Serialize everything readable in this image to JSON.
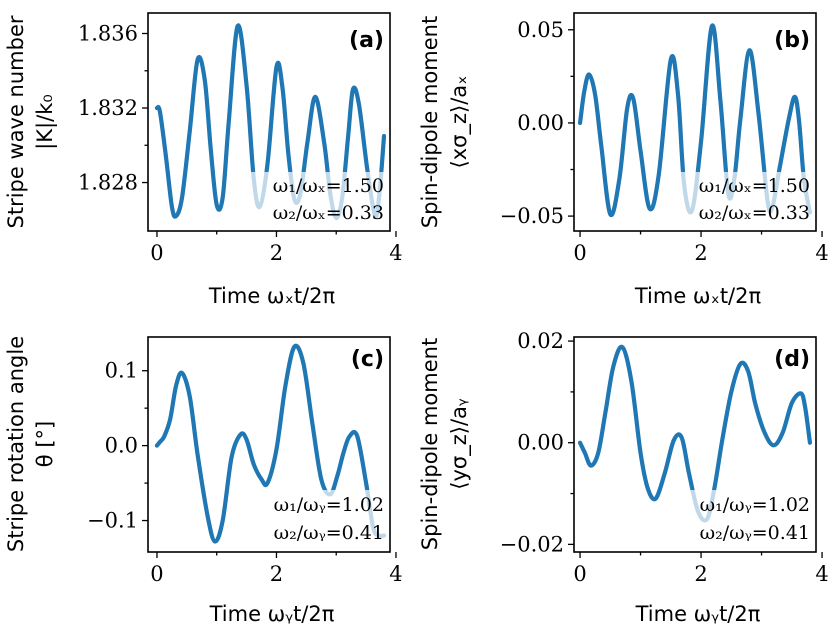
{
  "colors": {
    "line": "#1f77b4",
    "axis": "#000000"
  },
  "chart_data": [
    {
      "id": "a",
      "type": "line",
      "tag": "(a)",
      "ylabel_lines": [
        "Stripe wave number",
        "|K|/k₀"
      ],
      "xlabel": "Time ωₓt/2π",
      "xlim": [
        -0.15,
        3.9
      ],
      "ylim": [
        1.8254,
        1.8371
      ],
      "xticks": [
        0,
        2,
        4
      ],
      "xtick_labels": [
        "0",
        "2",
        "4"
      ],
      "yticks": [
        1.828,
        1.832,
        1.836
      ],
      "ytick_labels": [
        "1.828",
        "1.832",
        "1.836"
      ],
      "annotation": [
        "ω₁/ωₓ=1.50",
        "ω₂/ωₓ=0.33"
      ],
      "series": [
        {
          "name": "|K|/k0",
          "x": [
            0.0,
            0.05,
            0.15,
            0.25,
            0.32,
            0.42,
            0.55,
            0.68,
            0.8,
            0.9,
            1.0,
            1.1,
            1.2,
            1.35,
            1.5,
            1.62,
            1.72,
            1.85,
            2.0,
            2.1,
            2.2,
            2.3,
            2.4,
            2.52,
            2.65,
            2.8,
            2.9,
            3.0,
            3.1,
            3.2,
            3.28,
            3.38,
            3.52,
            3.65,
            3.72,
            3.8
          ],
          "y": [
            1.832,
            1.8318,
            1.8294,
            1.8267,
            1.8262,
            1.8272,
            1.8308,
            1.8346,
            1.8335,
            1.8298,
            1.8268,
            1.8272,
            1.8312,
            1.8364,
            1.8332,
            1.8282,
            1.8267,
            1.829,
            1.8342,
            1.8331,
            1.8295,
            1.8271,
            1.8274,
            1.8302,
            1.8326,
            1.8301,
            1.8274,
            1.8261,
            1.8272,
            1.8305,
            1.833,
            1.8322,
            1.8287,
            1.8262,
            1.8273,
            1.8305
          ]
        }
      ]
    },
    {
      "id": "b",
      "type": "line",
      "tag": "(b)",
      "ylabel_lines": [
        "Spin-dipole moment",
        "⟨xσ_z⟩/aₓ"
      ],
      "xlabel": "Time ωₓt/2π",
      "xlim": [
        -0.1,
        3.9
      ],
      "ylim": [
        -0.058,
        0.059
      ],
      "xticks": [
        0,
        2,
        4
      ],
      "xtick_labels": [
        "0",
        "2",
        "4"
      ],
      "yticks": [
        -0.05,
        0.0,
        0.05
      ],
      "ytick_labels": [
        "−0.05",
        "0.00",
        "0.05"
      ],
      "annotation": [
        "ω₁/ωₓ=1.50",
        "ω₂/ωₓ=0.33"
      ],
      "series": [
        {
          "name": "<x sigma_z>/a_x",
          "x": [
            0.0,
            0.07,
            0.15,
            0.25,
            0.35,
            0.5,
            0.65,
            0.78,
            0.88,
            1.0,
            1.15,
            1.3,
            1.5,
            1.62,
            1.72,
            1.85,
            2.0,
            2.18,
            2.32,
            2.45,
            2.55,
            2.65,
            2.8,
            2.95,
            3.1,
            3.18,
            3.3,
            3.45,
            3.55,
            3.62,
            3.7,
            3.8
          ],
          "y": [
            0.0,
            0.017,
            0.026,
            0.015,
            -0.012,
            -0.049,
            -0.03,
            0.008,
            0.013,
            -0.015,
            -0.046,
            -0.028,
            0.034,
            0.015,
            -0.033,
            -0.047,
            -0.01,
            0.052,
            0.012,
            -0.038,
            -0.03,
            0.002,
            0.039,
            0.005,
            -0.042,
            -0.045,
            -0.024,
            0.002,
            0.014,
            0.001,
            -0.03,
            -0.048
          ]
        }
      ]
    },
    {
      "id": "c",
      "type": "line",
      "tag": "(c)",
      "ylabel_lines": [
        "Stripe rotation angle",
        "θ [°]"
      ],
      "xlabel": "Time ωᵧt/2π",
      "xlim": [
        -0.15,
        3.9
      ],
      "ylim": [
        -0.142,
        0.145
      ],
      "xticks": [
        0,
        2,
        4
      ],
      "xtick_labels": [
        "0",
        "2",
        "4"
      ],
      "yticks": [
        -0.1,
        0.0,
        0.1
      ],
      "ytick_labels": [
        "−0.1",
        "0.0",
        "0.1"
      ],
      "annotation": [
        "ω₁/ωᵧ=1.02",
        "ω₂/ωᵧ=0.41"
      ],
      "series": [
        {
          "name": "theta",
          "x": [
            0.0,
            0.05,
            0.12,
            0.22,
            0.32,
            0.42,
            0.55,
            0.68,
            0.85,
            0.97,
            1.1,
            1.25,
            1.4,
            1.5,
            1.62,
            1.75,
            1.85,
            2.0,
            2.15,
            2.3,
            2.45,
            2.6,
            2.75,
            2.9,
            3.02,
            3.12,
            3.22,
            3.35,
            3.5,
            3.62,
            3.72,
            3.8
          ],
          "y": [
            0.0,
            0.005,
            0.012,
            0.035,
            0.08,
            0.097,
            0.065,
            -0.012,
            -0.095,
            -0.128,
            -0.1,
            -0.015,
            0.015,
            0.008,
            -0.025,
            -0.045,
            -0.05,
            -0.005,
            0.08,
            0.132,
            0.11,
            0.03,
            -0.045,
            -0.065,
            -0.04,
            -0.01,
            0.012,
            0.013,
            -0.05,
            -0.11,
            -0.12,
            -0.12
          ]
        }
      ]
    },
    {
      "id": "d",
      "type": "line",
      "tag": "(d)",
      "ylabel_lines": [
        "Spin-dipole moment",
        "⟨yσ_z⟩/aᵧ"
      ],
      "xlabel": "Time ωᵧt/2π",
      "xlim": [
        -0.1,
        3.9
      ],
      "ylim": [
        -0.0215,
        0.0208
      ],
      "xticks": [
        0,
        2,
        4
      ],
      "xtick_labels": [
        "0",
        "2",
        "4"
      ],
      "yticks": [
        -0.02,
        0.0,
        0.02
      ],
      "ytick_labels": [
        "−0.02",
        "0.00",
        "0.02"
      ],
      "annotation": [
        "ω₁/ωᵧ=1.02",
        "ω₂/ωᵧ=0.41"
      ],
      "series": [
        {
          "name": "<y sigma_z>/a_y",
          "x": [
            0.0,
            0.08,
            0.18,
            0.3,
            0.42,
            0.55,
            0.7,
            0.85,
            1.0,
            1.12,
            1.25,
            1.4,
            1.55,
            1.68,
            1.8,
            1.95,
            2.1,
            2.22,
            2.35,
            2.5,
            2.65,
            2.78,
            2.9,
            3.05,
            3.2,
            3.35,
            3.5,
            3.65,
            3.72,
            3.8
          ],
          "y": [
            0.0,
            -0.002,
            -0.0045,
            -0.002,
            0.006,
            0.015,
            0.0188,
            0.012,
            -0.002,
            -0.009,
            -0.011,
            -0.006,
            0.0005,
            0.001,
            -0.006,
            -0.0135,
            -0.015,
            -0.009,
            0.0005,
            0.01,
            0.0155,
            0.014,
            0.0075,
            0.002,
            -0.0005,
            0.002,
            0.0078,
            0.0097,
            0.007,
            0.0
          ]
        }
      ]
    }
  ]
}
